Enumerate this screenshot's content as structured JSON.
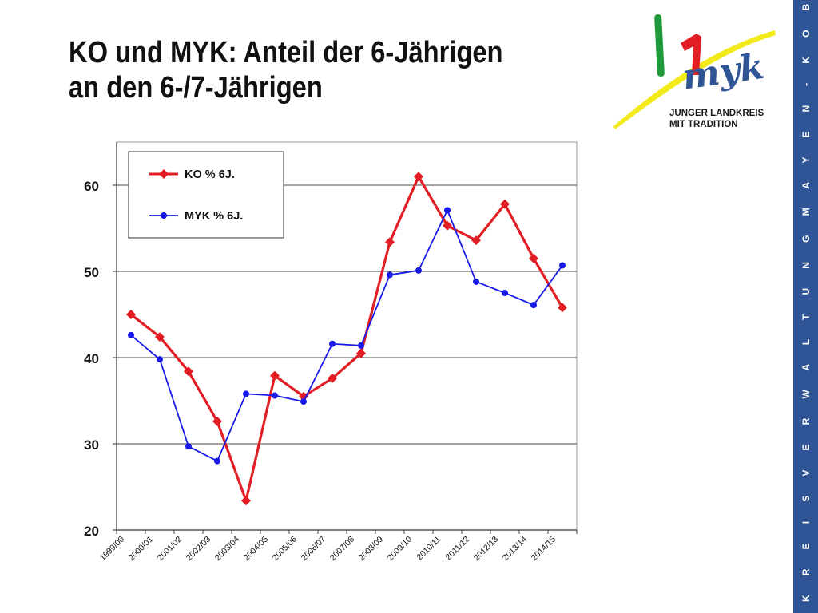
{
  "slide": {
    "title_line1": "KO und MYK: Anteil der 6-Jährigen",
    "title_line2": "an den 6-/7-Jährigen",
    "sidebar_text": "K R E I S V E R W A L T U N G   M A Y E N - K O B L E N Z"
  },
  "logo": {
    "line1": "JUNGER LANDKREIS",
    "line2": "MIT TRADITION",
    "wordmark": "myk",
    "colors": {
      "green": "#1f9a3a",
      "red": "#e31d24",
      "blue": "#2f5596",
      "yellow": "#f2ea1a"
    }
  },
  "chart_data": {
    "type": "line",
    "title": "",
    "xlabel": "",
    "ylabel": "",
    "categories": [
      "1999/00",
      "2000/01",
      "2001/02",
      "2002/03",
      "2003/04",
      "2004/05",
      "2005/06",
      "2006/07",
      "2007/08",
      "2008/09",
      "2009/10",
      "2010/11",
      "2011/12",
      "2012/13",
      "2013/14",
      "2014/15"
    ],
    "ylim": [
      20,
      65
    ],
    "yticks": [
      20,
      30,
      40,
      50,
      60
    ],
    "grid": true,
    "legend": "top-left",
    "series": [
      {
        "name": "KO % 6J.",
        "color": "#e31d24",
        "marker": "diamond",
        "values": [
          45.0,
          42.4,
          38.4,
          32.6,
          23.4,
          37.9,
          35.5,
          37.6,
          40.5,
          53.4,
          61.0,
          55.3,
          53.6,
          57.8,
          51.5,
          45.8
        ]
      },
      {
        "name": "MYK % 6J.",
        "color": "#1a1ae6",
        "marker": "circle",
        "values": [
          42.6,
          39.8,
          29.7,
          28.0,
          35.8,
          35.6,
          34.9,
          41.6,
          41.4,
          49.6,
          50.1,
          57.1,
          48.8,
          47.5,
          46.1,
          50.7
        ]
      }
    ]
  }
}
